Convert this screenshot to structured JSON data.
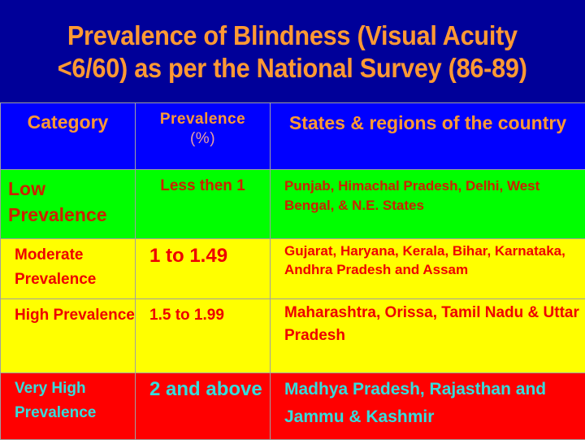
{
  "title": {
    "line1": "Prevalence of Blindness (Visual Acuity",
    "line2": "<6/60) as per the National Survey (86-89)"
  },
  "colors": {
    "background": "#000099",
    "title_text": "#ff9933",
    "header_bg": "#0000ff",
    "low_bg": "#00ff00",
    "moderate_bg": "#ffff00",
    "high_bg": "#ffff00",
    "very_high_bg": "#ff0000"
  },
  "table": {
    "headers": {
      "category": "Category",
      "prevalence": "Prevalence",
      "prevalence_unit": "(%)",
      "states": "States & regions of the country"
    },
    "rows": [
      {
        "category": "Low Prevalence",
        "prevalence": "Less then 1",
        "states": "Punjab, Himachal Pradesh, Delhi, West Bengal, & N.E. States"
      },
      {
        "category": "Moderate Prevalence",
        "prevalence": "1 to 1.49",
        "states": "Gujarat, Haryana, Kerala, Bihar, Karnataka, Andhra Pradesh and Assam"
      },
      {
        "category": "High Prevalence",
        "prevalence": "1.5 to 1.99",
        "states": "Maharashtra, Orissa, Tamil Nadu & Uttar Pradesh"
      },
      {
        "category": "Very High Prevalence",
        "prevalence": "2 and above",
        "states": "Madhya Pradesh, Rajasthan and Jammu & Kashmir"
      }
    ]
  }
}
